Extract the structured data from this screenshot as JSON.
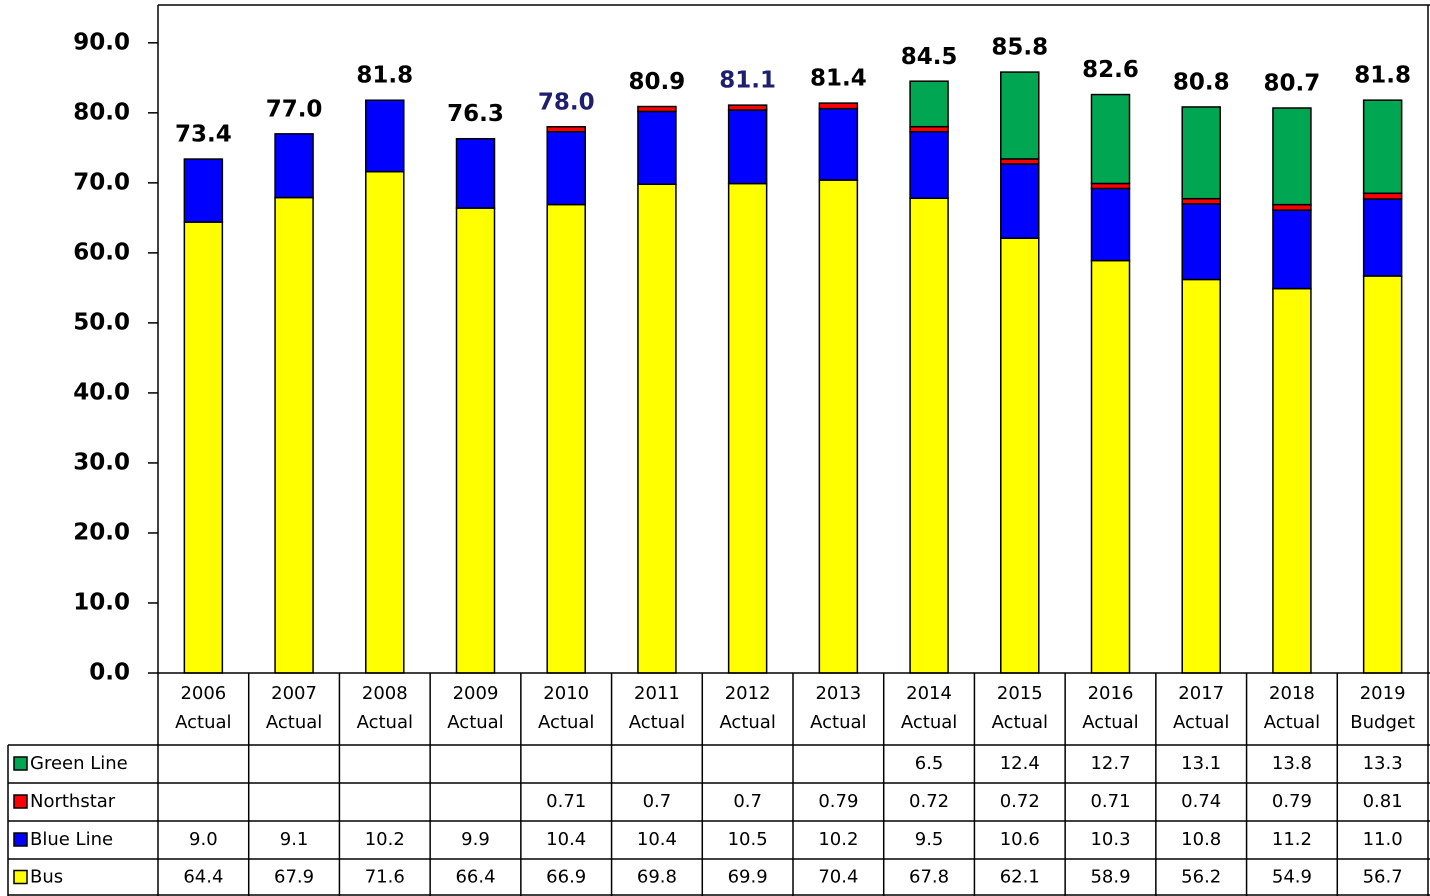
{
  "chart_data": {
    "type": "stacked_bar",
    "categories": [
      "2006 Actual",
      "2007 Actual",
      "2008 Actual",
      "2009 Actual",
      "2010 Actual",
      "2011 Actual",
      "2012 Actual",
      "2013 Actual",
      "2014 Actual",
      "2015 Actual",
      "2016 Actual",
      "2017 Actual",
      "2018 Actual",
      "2019 Budget"
    ],
    "series": [
      {
        "name": "Bus",
        "color": "#ffff00",
        "values": [
          64.4,
          67.9,
          71.6,
          66.4,
          66.9,
          69.8,
          69.9,
          70.4,
          67.8,
          62.1,
          58.9,
          56.2,
          54.9,
          56.7
        ]
      },
      {
        "name": "Blue Line",
        "color": "#0000ff",
        "values": [
          9.0,
          9.1,
          10.2,
          9.9,
          10.4,
          10.4,
          10.5,
          10.2,
          9.5,
          10.6,
          10.3,
          10.8,
          11.2,
          11.0
        ],
        "value_labels": [
          "9.0",
          "9.1",
          "10.2",
          "9.9",
          "10.4",
          "10.4",
          "10.5",
          "10.2",
          "9.5",
          "10.6",
          "10.3",
          "10.8",
          "11.2",
          "11.0"
        ]
      },
      {
        "name": "Northstar",
        "color": "#ff0000",
        "values": [
          null,
          null,
          null,
          null,
          0.71,
          0.7,
          0.7,
          0.79,
          0.72,
          0.72,
          0.71,
          0.74,
          0.79,
          0.81
        ]
      },
      {
        "name": "Green Line",
        "color": "#00a651",
        "values": [
          null,
          null,
          null,
          null,
          null,
          null,
          null,
          null,
          6.5,
          12.4,
          12.7,
          13.1,
          13.8,
          13.3
        ]
      }
    ],
    "totals": {
      "values": [
        73.4,
        77.0,
        81.8,
        76.3,
        78.0,
        80.9,
        81.1,
        81.4,
        84.5,
        85.8,
        82.6,
        80.8,
        80.7,
        81.8
      ],
      "value_labels": [
        "73.4",
        "77.0",
        "81.8",
        "76.3",
        "78.0",
        "80.9",
        "81.1",
        "81.4",
        "84.5",
        "85.8",
        "82.6",
        "80.8",
        "80.7",
        "81.8"
      ],
      "colors": [
        "#000",
        "#000",
        "#000",
        "#000",
        "#1f1f6e",
        "#000",
        "#1f1f6e",
        "#000",
        "#000",
        "#000",
        "#000",
        "#000",
        "#000",
        "#000"
      ]
    },
    "ylim": [
      0,
      95.4
    ],
    "yticks": [
      {
        "value": 0,
        "label": "0.0"
      },
      {
        "value": 10,
        "label": "10.0"
      },
      {
        "value": 20,
        "label": "20.0"
      },
      {
        "value": 30,
        "label": "30.0"
      },
      {
        "value": 40,
        "label": "40.0"
      },
      {
        "value": 50,
        "label": "50.0"
      },
      {
        "value": 60,
        "label": "60.0"
      },
      {
        "value": 70,
        "label": "70.0"
      },
      {
        "value": 80,
        "label": "80.0"
      },
      {
        "value": 90,
        "label": "90.0"
      }
    ]
  }
}
